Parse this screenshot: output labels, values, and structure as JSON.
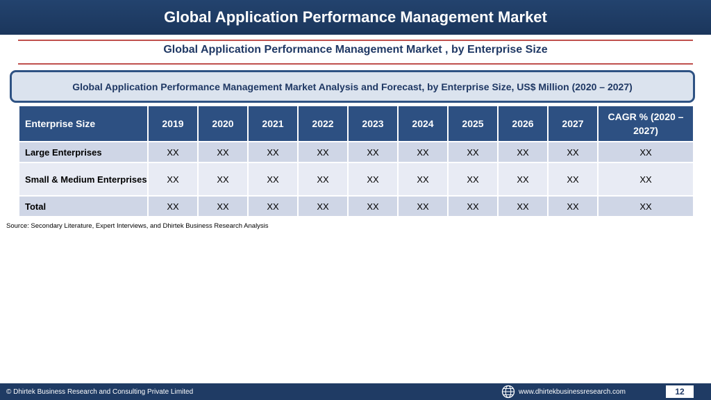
{
  "header": {
    "title": "Global Application Performance Management Market"
  },
  "subtitle": "Global Application Performance Management Market , by Enterprise Size",
  "banner": "Global Application Performance Management Market  Analysis and Forecast, by Enterprise Size, US$ Million (2020 – 2027)",
  "table": {
    "columns": [
      "Enterprise Size",
      "2019",
      "2020",
      "2021",
      "2022",
      "2023",
      "2024",
      "2025",
      "2026",
      "2027",
      "CAGR % (2020 – 2027)"
    ],
    "rows": [
      {
        "label": "Large Enterprises",
        "values": [
          "XX",
          "XX",
          "XX",
          "XX",
          "XX",
          "XX",
          "XX",
          "XX",
          "XX",
          "XX"
        ]
      },
      {
        "label": "Small & Medium Enterprises",
        "values": [
          "XX",
          "XX",
          "XX",
          "XX",
          "XX",
          "XX",
          "XX",
          "XX",
          "XX",
          "XX"
        ]
      },
      {
        "label": "Total",
        "values": [
          "XX",
          "XX",
          "XX",
          "XX",
          "XX",
          "XX",
          "XX",
          "XX",
          "XX",
          "XX"
        ]
      }
    ]
  },
  "source": "Source: Secondary Literature, Expert Interviews, and Dhirtek Business Research Analysis",
  "footer": {
    "copyright": "© Dhirtek Business Research and Consulting Private Limited",
    "website": "www.dhirtekbusinessresearch.com",
    "page_number": "12",
    "globe_icon": "globe-icon"
  },
  "colors": {
    "header_bg": "#1b365c",
    "accent_rule": "#c0504d",
    "table_header_bg": "#2d5082",
    "row_dark": "#cfd6e6",
    "row_light": "#e8ebf4"
  }
}
